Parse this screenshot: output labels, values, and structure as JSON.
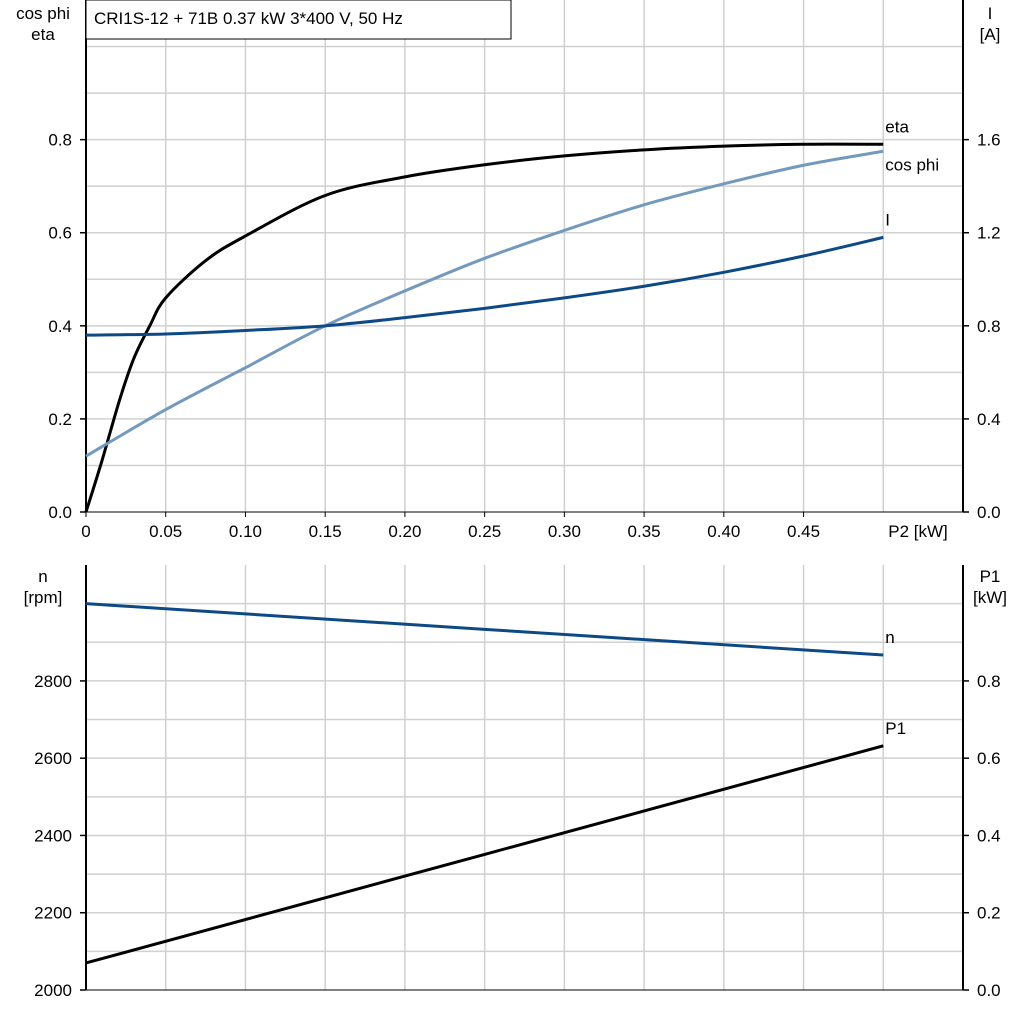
{
  "chart_data": [
    {
      "type": "line",
      "title": "CRI1S-12 + 71B   0.37 kW   3*400 V, 50 Hz",
      "xlabel": "P2 [kW]",
      "ylabel_left": [
        "cos phi",
        "eta"
      ],
      "ylabel_right": [
        "I",
        "[A]"
      ],
      "xlim": [
        0,
        0.55
      ],
      "ylim_left": [
        0,
        1.1
      ],
      "ylim_right": [
        0,
        2.2
      ],
      "x_ticks": [
        "0",
        "0.05",
        "0.10",
        "0.15",
        "0.20",
        "0.25",
        "0.30",
        "0.35",
        "0.40",
        "0.45"
      ],
      "y_ticks_left": [
        "0.0",
        "0.2",
        "0.4",
        "0.6",
        "0.8"
      ],
      "y_ticks_right": [
        "0.0",
        "0.4",
        "0.8",
        "1.2",
        "1.6"
      ],
      "grid": true,
      "series": [
        {
          "name": "eta",
          "axis": "left",
          "color": "#000000",
          "x": [
            0,
            0.01,
            0.021,
            0.03,
            0.04,
            0.05,
            0.075,
            0.1,
            0.15,
            0.2,
            0.25,
            0.3,
            0.35,
            0.4,
            0.45,
            0.5
          ],
          "y": [
            0,
            0.11,
            0.24,
            0.33,
            0.4,
            0.46,
            0.54,
            0.593,
            0.68,
            0.72,
            0.746,
            0.765,
            0.778,
            0.786,
            0.79,
            0.79
          ]
        },
        {
          "name": "cos phi",
          "axis": "left",
          "color": "#7399bd",
          "x": [
            0,
            0.05,
            0.1,
            0.15,
            0.2,
            0.25,
            0.3,
            0.35,
            0.4,
            0.45,
            0.5
          ],
          "y": [
            0.12,
            0.22,
            0.31,
            0.4,
            0.475,
            0.545,
            0.605,
            0.66,
            0.705,
            0.745,
            0.775
          ]
        },
        {
          "name": "I",
          "axis": "right",
          "color": "#0d4a85",
          "x": [
            0,
            0.05,
            0.1,
            0.15,
            0.2,
            0.25,
            0.3,
            0.35,
            0.4,
            0.45,
            0.5
          ],
          "y": [
            0.76,
            0.765,
            0.78,
            0.8,
            0.835,
            0.875,
            0.92,
            0.97,
            1.03,
            1.1,
            1.18
          ]
        }
      ]
    },
    {
      "type": "line",
      "xlim": [
        0,
        0.55
      ],
      "ylabel_left": [
        "n",
        "[rpm]"
      ],
      "ylabel_right": [
        "P1",
        "[kW]"
      ],
      "ylim_left": [
        2000,
        3100
      ],
      "ylim_right": [
        0,
        1.1
      ],
      "y_ticks_left": [
        "2000",
        "2200",
        "2400",
        "2600",
        "2800"
      ],
      "y_ticks_right": [
        "0.0",
        "0.2",
        "0.4",
        "0.6",
        "0.8"
      ],
      "grid": true,
      "series": [
        {
          "name": "n",
          "axis": "left",
          "color": "#0d4a85",
          "x": [
            0,
            0.5
          ],
          "y": [
            3000,
            2867
          ]
        },
        {
          "name": "P1",
          "axis": "right",
          "color": "#000000",
          "x": [
            0,
            0.5
          ],
          "y": [
            0.07,
            0.632
          ]
        }
      ]
    }
  ]
}
